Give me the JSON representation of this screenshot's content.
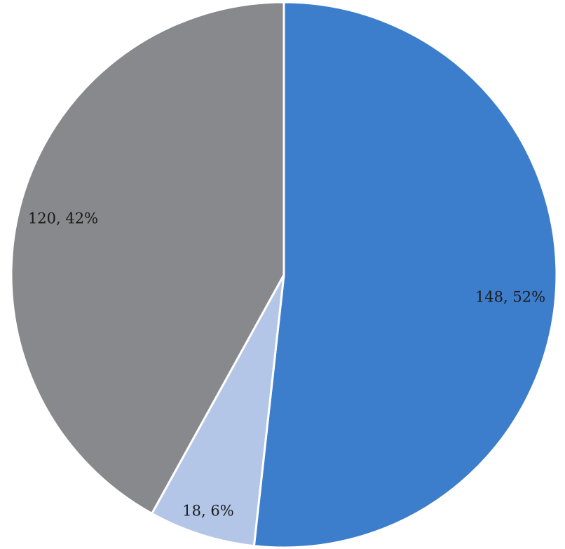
{
  "chart_data": {
    "type": "pie",
    "title": "",
    "slices": [
      {
        "value": 148,
        "label": "148, 52%",
        "color": "#3D7ECC"
      },
      {
        "value": 18,
        "label": "18, 6%",
        "color": "#B3C6E7"
      },
      {
        "value": 120,
        "label": "120, 42%",
        "color": "#88898C"
      }
    ],
    "start_angle_deg": 0,
    "direction": "clockwise",
    "legend": "none"
  }
}
